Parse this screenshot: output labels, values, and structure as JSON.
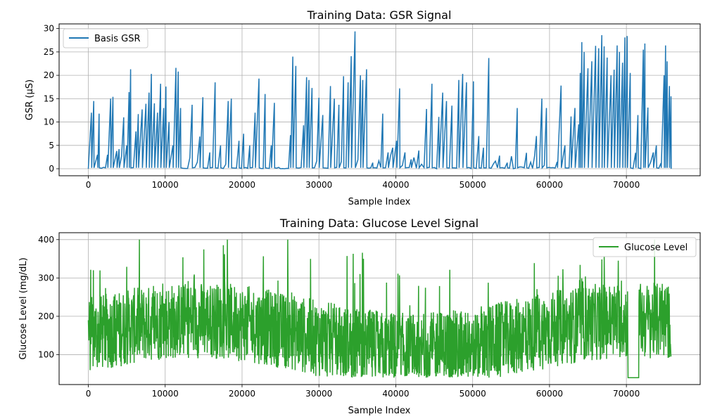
{
  "chart_data": [
    {
      "type": "line",
      "title": "Training Data: GSR Signal",
      "xlabel": "Sample Index",
      "ylabel": "GSR (µS)",
      "xlim": [
        -3800,
        79600
      ],
      "ylim": [
        -1.5,
        31
      ],
      "xticks": [
        0,
        10000,
        20000,
        30000,
        40000,
        50000,
        60000,
        70000
      ],
      "xtick_labels": [
        "0",
        "10000",
        "20000",
        "30000",
        "40000",
        "50000",
        "60000",
        "70000"
      ],
      "yticks": [
        0,
        5,
        10,
        15,
        20,
        25,
        30
      ],
      "ytick_labels": [
        "0",
        "5",
        "10",
        "15",
        "20",
        "25",
        "30"
      ],
      "grid": true,
      "legend_position": "upper-left",
      "x_range": [
        0,
        75800
      ],
      "series": [
        {
          "name": "Basis GSR",
          "color": "#1f77b4",
          "peaks": [
            [
              400,
              12
            ],
            [
              700,
              14.5
            ],
            [
              1200,
              3
            ],
            [
              1400,
              11.8
            ],
            [
              2500,
              3
            ],
            [
              2900,
              15
            ],
            [
              3200,
              15.4
            ],
            [
              3700,
              3.8
            ],
            [
              4000,
              4.2
            ],
            [
              4600,
              11
            ],
            [
              5000,
              5
            ],
            [
              5300,
              16.4
            ],
            [
              5500,
              21.3
            ],
            [
              6200,
              8
            ],
            [
              6500,
              11.7
            ],
            [
              7000,
              12.7
            ],
            [
              7500,
              13.9
            ],
            [
              7900,
              16.3
            ],
            [
              8200,
              20.3
            ],
            [
              8600,
              14
            ],
            [
              9000,
              12
            ],
            [
              9400,
              18.2
            ],
            [
              9800,
              13
            ],
            [
              10100,
              17.6
            ],
            [
              10500,
              10
            ],
            [
              11000,
              5
            ],
            [
              11400,
              21.6
            ],
            [
              11700,
              20.8
            ],
            [
              12000,
              13
            ],
            [
              13500,
              13.7
            ],
            [
              14500,
              6.9
            ],
            [
              14900,
              15.3
            ],
            [
              15800,
              3.5
            ],
            [
              16500,
              18.5
            ],
            [
              17200,
              5
            ],
            [
              18200,
              14.5
            ],
            [
              18600,
              15
            ],
            [
              19600,
              6
            ],
            [
              20200,
              7.5
            ],
            [
              21000,
              5
            ],
            [
              21700,
              12
            ],
            [
              22200,
              19.3
            ],
            [
              23000,
              16
            ],
            [
              23800,
              5
            ],
            [
              24200,
              14.1
            ],
            [
              26300,
              7.2
            ],
            [
              26600,
              24
            ],
            [
              27000,
              22
            ],
            [
              28000,
              9.3
            ],
            [
              28400,
              19.6
            ],
            [
              28700,
              19
            ],
            [
              29100,
              17.3
            ],
            [
              30000,
              15.2
            ],
            [
              30500,
              11.5
            ],
            [
              31500,
              17.7
            ],
            [
              32000,
              15
            ],
            [
              32600,
              13.7
            ],
            [
              33200,
              19.8
            ],
            [
              33800,
              18.5
            ],
            [
              34200,
              24.1
            ],
            [
              34700,
              29.4
            ],
            [
              35400,
              20
            ],
            [
              35700,
              19
            ],
            [
              36200,
              21.3
            ],
            [
              37000,
              1.3
            ],
            [
              38300,
              11.8
            ],
            [
              39000,
              3.5
            ],
            [
              39600,
              4.5
            ],
            [
              40100,
              6
            ],
            [
              40500,
              17.2
            ],
            [
              41200,
              3.5
            ],
            [
              42000,
              2
            ],
            [
              43000,
              3.9
            ],
            [
              44000,
              12.8
            ],
            [
              44700,
              18.2
            ],
            [
              45600,
              11.1
            ],
            [
              46100,
              16.3
            ],
            [
              46600,
              14.5
            ],
            [
              47300,
              13.5
            ],
            [
              48200,
              19
            ],
            [
              48700,
              20.3
            ],
            [
              49200,
              18.5
            ],
            [
              50100,
              18.7
            ],
            [
              50800,
              7
            ],
            [
              51400,
              4.5
            ],
            [
              52100,
              23.7
            ],
            [
              53500,
              2.8
            ],
            [
              54500,
              1.3
            ],
            [
              55800,
              13
            ],
            [
              57000,
              3.4
            ],
            [
              58300,
              7
            ],
            [
              59000,
              15
            ],
            [
              59600,
              13
            ],
            [
              61000,
              1.5
            ],
            [
              61500,
              17.8
            ],
            [
              62000,
              5
            ],
            [
              62800,
              11.2
            ],
            [
              63300,
              13
            ],
            [
              63800,
              9.5
            ],
            [
              64000,
              20.5
            ],
            [
              64200,
              27.1
            ],
            [
              64500,
              25
            ],
            [
              65000,
              21.5
            ],
            [
              65500,
              23
            ],
            [
              66000,
              26.3
            ],
            [
              66400,
              25.8
            ],
            [
              66800,
              28.6
            ],
            [
              67100,
              26.2
            ],
            [
              67500,
              23.8
            ],
            [
              68000,
              20
            ],
            [
              68400,
              21.2
            ],
            [
              68800,
              26.4
            ],
            [
              69100,
              25
            ],
            [
              69500,
              22.7
            ],
            [
              69800,
              28.1
            ],
            [
              70100,
              28.4
            ],
            [
              70500,
              20.5
            ],
            [
              71200,
              3.4
            ],
            [
              71500,
              11.5
            ],
            [
              72200,
              25.5
            ],
            [
              72400,
              26.8
            ],
            [
              72800,
              13.1
            ],
            [
              73500,
              3.5
            ],
            [
              73900,
              5
            ],
            [
              74500,
              1.2
            ],
            [
              74900,
              20
            ],
            [
              75100,
              26.4
            ],
            [
              75300,
              23
            ],
            [
              75600,
              17.7
            ],
            [
              75800,
              15.5
            ]
          ]
        }
      ]
    },
    {
      "type": "line",
      "title": "Training Data: Glucose Level Signal",
      "xlabel": "Sample Index",
      "ylabel": "Glucose Level (mg/dL)",
      "xlim": [
        -3800,
        79600
      ],
      "ylim": [
        22,
        418
      ],
      "xticks": [
        0,
        10000,
        20000,
        30000,
        40000,
        50000,
        60000,
        70000
      ],
      "xtick_labels": [
        "0",
        "10000",
        "20000",
        "30000",
        "40000",
        "50000",
        "60000",
        "70000"
      ],
      "yticks": [
        100,
        200,
        300,
        400
      ],
      "ytick_labels": [
        "100",
        "200",
        "300",
        "400"
      ],
      "grid": true,
      "legend_position": "upper-right",
      "x_range": [
        0,
        75800
      ],
      "series": [
        {
          "name": "Glucose Level",
          "color": "#2ca02c",
          "min": 40,
          "max": 400,
          "typical_range": [
            80,
            250
          ],
          "flat_segment": {
            "x": [
              70200,
              71600
            ],
            "y": 40
          }
        }
      ]
    }
  ]
}
